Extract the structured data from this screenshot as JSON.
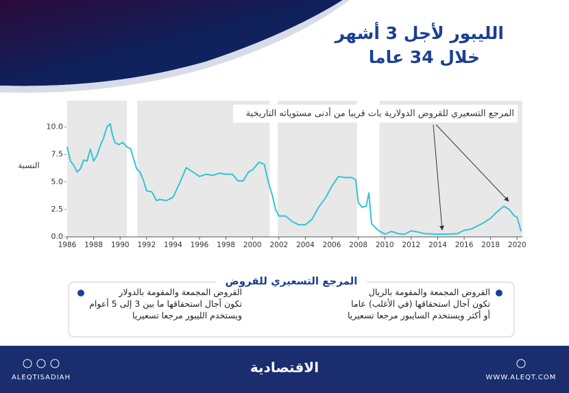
{
  "header": {
    "title_lines": [
      "الليبور لأجل 3 أشهر",
      "خلال 34 عاما"
    ]
  },
  "chart_data": {
    "type": "line",
    "y_label": "النسبة",
    "annotation": "المرجع التسعيري للقروض الدولارية بات قريبا من أدنى مستوياته التاريخية",
    "color": "#2ec4d6",
    "shaded_periods": [
      [
        1986,
        1990.5
      ],
      [
        1991.3,
        2001.3
      ],
      [
        2001.9,
        2007.9
      ],
      [
        2009.6,
        2020.4
      ]
    ],
    "x": [
      1986,
      1986.25,
      1986.5,
      1986.75,
      1987,
      1987.25,
      1987.5,
      1987.75,
      1988,
      1988.25,
      1988.5,
      1988.75,
      1989,
      1989.25,
      1989.4,
      1989.6,
      1989.9,
      1990.2,
      1990.5,
      1990.8,
      1991,
      1991.25,
      1991.5,
      1991.75,
      1992,
      1992.4,
      1992.75,
      1993,
      1993.5,
      1994,
      1994.5,
      1995,
      1995.5,
      1996,
      1996.5,
      1997,
      1997.5,
      1998,
      1998.5,
      1998.9,
      1999.3,
      1999.7,
      2000,
      2000.5,
      2000.9,
      2001.2,
      2001.5,
      2001.75,
      2002,
      2002.5,
      2003,
      2003.5,
      2004,
      2004.5,
      2005,
      2005.5,
      2006,
      2006.5,
      2007,
      2007.5,
      2007.8,
      2008,
      2008.3,
      2008.6,
      2008.8,
      2009,
      2009.5,
      2010,
      2010.5,
      2011,
      2011.5,
      2012,
      2012.5,
      2013,
      2014,
      2015,
      2015.5,
      2016,
      2016.5,
      2017,
      2017.5,
      2018,
      2018.5,
      2019,
      2019.4,
      2019.8,
      2020,
      2020.3
    ],
    "values": [
      8.2,
      6.9,
      6.5,
      5.9,
      6.2,
      7.0,
      6.9,
      8.0,
      6.9,
      7.4,
      8.3,
      9.0,
      10.0,
      10.3,
      9.4,
      8.6,
      8.4,
      8.6,
      8.2,
      8.0,
      7.2,
      6.2,
      5.9,
      5.2,
      4.2,
      4.1,
      3.3,
      3.4,
      3.3,
      3.6,
      4.9,
      6.3,
      5.9,
      5.5,
      5.7,
      5.6,
      5.8,
      5.7,
      5.7,
      5.1,
      5.1,
      5.9,
      6.1,
      6.8,
      6.6,
      5.0,
      3.8,
      2.5,
      1.9,
      1.9,
      1.4,
      1.1,
      1.1,
      1.6,
      2.7,
      3.5,
      4.6,
      5.5,
      5.4,
      5.4,
      5.2,
      3.1,
      2.7,
      2.8,
      4.0,
      1.2,
      0.6,
      0.25,
      0.5,
      0.3,
      0.25,
      0.55,
      0.45,
      0.3,
      0.24,
      0.26,
      0.3,
      0.6,
      0.7,
      1.0,
      1.3,
      1.7,
      2.3,
      2.8,
      2.5,
      1.9,
      1.8,
      0.5
    ],
    "xlim": [
      1986,
      2020.4
    ],
    "xticks": [
      1986,
      1988,
      1990,
      1992,
      1994,
      1996,
      1998,
      2000,
      2002,
      2004,
      2006,
      2008,
      2010,
      2012,
      2014,
      2016,
      2018,
      2020
    ],
    "ylim": [
      0,
      12.4
    ],
    "yticks": [
      {
        "value": 0,
        "label": "0.0"
      },
      2.5,
      {
        "value": 5,
        "label": "5.0"
      },
      7.5,
      {
        "value": 10,
        "label": "10.0"
      }
    ]
  },
  "comparison": {
    "title": "المرجع التسعيري للقروض",
    "items": [
      {
        "lines": [
          "القروض المجمعة والمقومة بالريال",
          "تكون آجال استحقاقها (في الأغلب) عاما",
          "أو أكثر ويستخدم السايبور مرجعا تسعيريا"
        ]
      },
      {
        "lines": [
          "القروض المجمعة والمقومة بالدولار",
          "تكون آجال استحقاقها ما بين 3 إلى 5 أعوام",
          "ويستخدم الليبور مرجعا تسعيريا"
        ]
      }
    ]
  },
  "footer": {
    "handle": "ALEQTISADIAH",
    "brand": "الاقتصادية",
    "website": "WWW.ALEQT.COM"
  }
}
